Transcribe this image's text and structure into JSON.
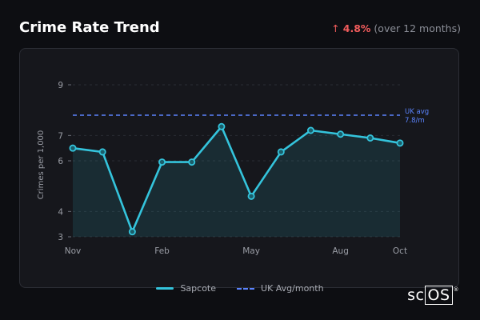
{
  "header": {
    "title": "Crime Rate Trend",
    "change_arrow": "↑",
    "change_value": "4.8%",
    "change_period": "(over 12 months)"
  },
  "legend": {
    "series_label": "Sapcote",
    "reference_label": "UK Avg/month"
  },
  "logo": {
    "prefix": "sc",
    "boxed": "OS",
    "mark": "®"
  },
  "colors": {
    "series": "#34c4dc",
    "reference": "#5b84ff",
    "up": "#f25c5c"
  },
  "chart_data": {
    "type": "line",
    "title": "Crime Rate Trend",
    "xlabel": "",
    "ylabel": "Crimes per 1,000",
    "x": [
      "Nov",
      "Dec",
      "Jan",
      "Feb",
      "Mar",
      "Apr",
      "May",
      "Jun",
      "Jul",
      "Aug",
      "Sep",
      "Oct"
    ],
    "xticks": [
      "Nov",
      "Feb",
      "May",
      "Aug",
      "Oct"
    ],
    "yticks": [
      3,
      4,
      6,
      7,
      9
    ],
    "ylim": [
      3,
      9
    ],
    "series": [
      {
        "name": "Sapcote",
        "values": [
          6.5,
          6.35,
          3.2,
          5.95,
          5.95,
          7.35,
          4.6,
          6.35,
          7.2,
          7.05,
          6.9,
          6.7
        ]
      }
    ],
    "reference_line": {
      "name": "UK Avg/month",
      "value": 7.8,
      "label_line1": "UK avg",
      "label_line2": "7.8/m"
    },
    "grid": true,
    "legend_position": "bottom-center"
  }
}
